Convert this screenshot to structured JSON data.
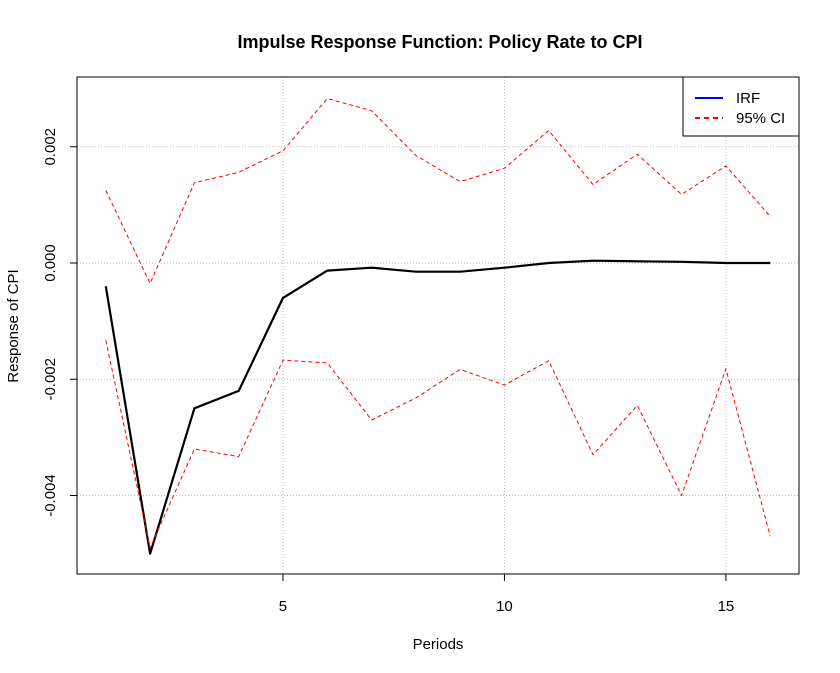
{
  "chart_data": {
    "type": "line",
    "title": "Impulse Response Function: Policy Rate to CPI",
    "xlabel": "Periods",
    "ylabel": "Response of CPI",
    "xlim": [
      0.35,
      16.65
    ],
    "ylim": [
      -0.00535,
      0.0032
    ],
    "x_ticks": [
      5,
      10,
      15
    ],
    "x_tick_labels": [
      "5",
      "10",
      "15"
    ],
    "y_ticks": [
      -0.004,
      -0.002,
      0.0,
      0.002
    ],
    "y_tick_labels": [
      "-0.004",
      "-0.002",
      "0.000",
      "0.002"
    ],
    "grid": true,
    "legend_position": "top-right",
    "x": [
      1,
      2,
      3,
      4,
      5,
      6,
      7,
      8,
      9,
      10,
      11,
      12,
      13,
      14,
      15,
      16
    ],
    "series": [
      {
        "name": "IRF",
        "color": "#0000ff",
        "plot_color": "#000000",
        "style": "solid",
        "values": [
          -0.0004,
          -0.005,
          -0.0025,
          -0.0022,
          -0.0006,
          -0.00013,
          -8e-05,
          -0.00015,
          -0.00015,
          -8e-05,
          0.0,
          4e-05,
          3e-05,
          2e-05,
          0.0,
          0.0
        ]
      },
      {
        "name": "95% CI",
        "color": "#ff0000",
        "style": "dashed",
        "values": [
          0.00125,
          -0.00035,
          0.00138,
          0.00156,
          0.00193,
          0.00283,
          0.00262,
          0.00185,
          0.0014,
          0.00163,
          0.00228,
          0.00135,
          0.00187,
          0.00118,
          0.00167,
          0.0008
        ]
      },
      {
        "name": "95% CI",
        "color": "#ff0000",
        "style": "dashed",
        "values": [
          -0.00133,
          -0.0049,
          -0.0032,
          -0.00333,
          -0.00167,
          -0.00172,
          -0.0027,
          -0.00232,
          -0.00183,
          -0.0021,
          -0.00168,
          -0.0033,
          -0.00245,
          -0.004,
          -0.00182,
          -0.0047
        ]
      }
    ],
    "legend_entries": [
      {
        "label": "IRF",
        "color": "#0000ff",
        "style": "solid"
      },
      {
        "label": "95% CI",
        "color": "#ff0000",
        "style": "dashed"
      }
    ]
  }
}
